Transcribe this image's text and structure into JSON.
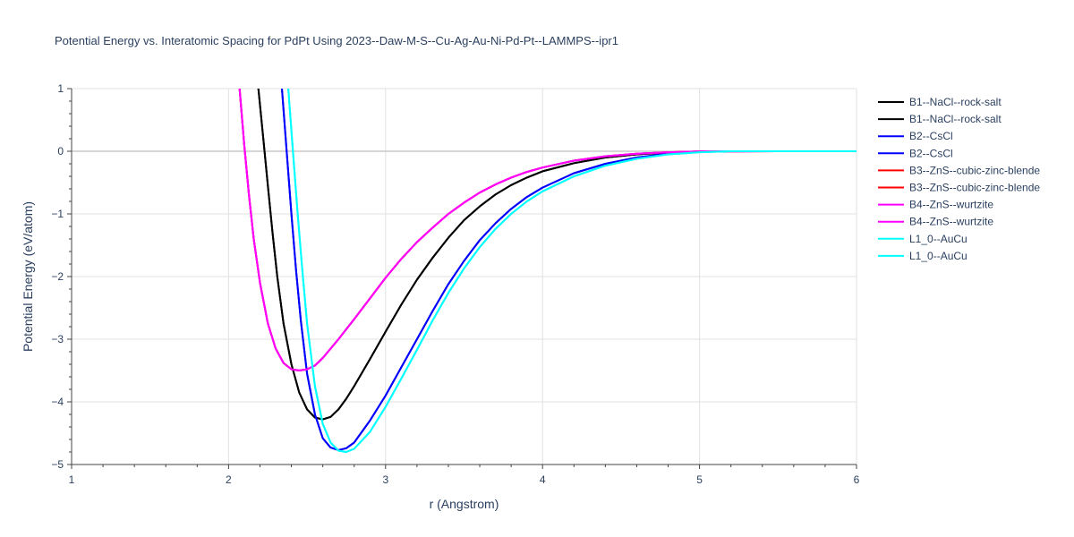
{
  "chart_data": {
    "type": "line",
    "title": "Potential Energy vs. Interatomic Spacing for PdPt Using 2023--Daw-M-S--Cu-Ag-Au-Ni-Pd-Pt--LAMMPS--ipr1",
    "xlabel": "r (Angstrom)",
    "ylabel": "Potential Energy (eV/atom)",
    "xlim": [
      1,
      6
    ],
    "ylim": [
      -5,
      1
    ],
    "x_ticks": [
      1,
      2,
      3,
      4,
      5,
      6
    ],
    "y_ticks": [
      1,
      0,
      -1,
      -2,
      -3,
      -4,
      -5
    ],
    "x_tick_labels": [
      "1",
      "2",
      "3",
      "4",
      "5",
      "6"
    ],
    "y_tick_labels": [
      "1",
      "0",
      "−1",
      "−2",
      "−3",
      "−4",
      "−5"
    ],
    "grid": true,
    "legend_position": "right",
    "series": [
      {
        "name": "B1--NaCl--rock-salt",
        "color": "#000000",
        "x": [
          2.19,
          2.22,
          2.25,
          2.28,
          2.31,
          2.35,
          2.4,
          2.45,
          2.5,
          2.55,
          2.6,
          2.65,
          2.7,
          2.75,
          2.8,
          2.9,
          3.0,
          3.1,
          3.2,
          3.3,
          3.4,
          3.5,
          3.6,
          3.7,
          3.8,
          3.9,
          4.0,
          4.2,
          4.4,
          4.6,
          4.8,
          5.0,
          5.2,
          5.5,
          6.0
        ],
        "y": [
          1.0,
          0.23,
          -0.55,
          -1.3,
          -2.0,
          -2.75,
          -3.4,
          -3.85,
          -4.12,
          -4.25,
          -4.28,
          -4.24,
          -4.12,
          -3.95,
          -3.75,
          -3.32,
          -2.88,
          -2.45,
          -2.05,
          -1.7,
          -1.38,
          -1.1,
          -0.88,
          -0.69,
          -0.54,
          -0.42,
          -0.32,
          -0.19,
          -0.1,
          -0.05,
          -0.02,
          -0.005,
          0.0,
          0.0,
          0.0
        ]
      },
      {
        "name": "B1--NaCl--rock-salt",
        "color": "#000000",
        "x": [
          2.19,
          2.22,
          2.25,
          2.28,
          2.31,
          2.35,
          2.4,
          2.45,
          2.5,
          2.55,
          2.6,
          2.65,
          2.7,
          2.75,
          2.8,
          2.9,
          3.0,
          3.1,
          3.2,
          3.3,
          3.4,
          3.5,
          3.6,
          3.7,
          3.8,
          3.9,
          4.0,
          4.2,
          4.4,
          4.6,
          4.8,
          5.0,
          5.2,
          5.5,
          6.0
        ],
        "y": [
          1.0,
          0.23,
          -0.55,
          -1.3,
          -2.0,
          -2.75,
          -3.4,
          -3.85,
          -4.12,
          -4.25,
          -4.28,
          -4.24,
          -4.12,
          -3.95,
          -3.75,
          -3.32,
          -2.88,
          -2.45,
          -2.05,
          -1.7,
          -1.38,
          -1.1,
          -0.88,
          -0.69,
          -0.54,
          -0.42,
          -0.32,
          -0.19,
          -0.1,
          -0.05,
          -0.02,
          -0.005,
          0.0,
          0.0,
          0.0
        ]
      },
      {
        "name": "B2--CsCl",
        "color": "#0000ff",
        "x": [
          2.34,
          2.37,
          2.4,
          2.43,
          2.46,
          2.5,
          2.55,
          2.6,
          2.65,
          2.7,
          2.75,
          2.8,
          2.9,
          3.0,
          3.1,
          3.2,
          3.3,
          3.4,
          3.5,
          3.6,
          3.7,
          3.8,
          3.9,
          4.0,
          4.2,
          4.4,
          4.6,
          4.8,
          5.0,
          5.2,
          5.5,
          6.0
        ],
        "y": [
          1.0,
          0.0,
          -1.0,
          -1.9,
          -2.7,
          -3.55,
          -4.2,
          -4.58,
          -4.73,
          -4.77,
          -4.74,
          -4.65,
          -4.3,
          -3.9,
          -3.45,
          -3.0,
          -2.55,
          -2.12,
          -1.75,
          -1.42,
          -1.15,
          -0.92,
          -0.73,
          -0.58,
          -0.35,
          -0.2,
          -0.1,
          -0.04,
          -0.01,
          0.0,
          0.0,
          0.0
        ]
      },
      {
        "name": "B2--CsCl",
        "color": "#0000ff",
        "x": [
          2.34,
          2.37,
          2.4,
          2.43,
          2.46,
          2.5,
          2.55,
          2.6,
          2.65,
          2.7,
          2.75,
          2.8,
          2.9,
          3.0,
          3.1,
          3.2,
          3.3,
          3.4,
          3.5,
          3.6,
          3.7,
          3.8,
          3.9,
          4.0,
          4.2,
          4.4,
          4.6,
          4.8,
          5.0,
          5.2,
          5.5,
          6.0
        ],
        "y": [
          1.0,
          0.0,
          -1.0,
          -1.9,
          -2.7,
          -3.55,
          -4.2,
          -4.58,
          -4.73,
          -4.77,
          -4.74,
          -4.65,
          -4.3,
          -3.9,
          -3.45,
          -3.0,
          -2.55,
          -2.12,
          -1.75,
          -1.42,
          -1.15,
          -0.92,
          -0.73,
          -0.58,
          -0.35,
          -0.2,
          -0.1,
          -0.04,
          -0.01,
          0.0,
          0.0,
          0.0
        ]
      },
      {
        "name": "B3--ZnS--cubic-zinc-blende",
        "color": "#ff0000",
        "x": [
          2.07,
          2.1,
          2.13,
          2.16,
          2.2,
          2.25,
          2.3,
          2.35,
          2.4,
          2.45,
          2.5,
          2.55,
          2.6,
          2.7,
          2.8,
          2.9,
          3.0,
          3.1,
          3.2,
          3.3,
          3.4,
          3.5,
          3.6,
          3.7,
          3.8,
          3.9,
          4.0,
          4.2,
          4.4,
          4.6,
          4.8,
          5.0,
          5.5,
          6.0
        ],
        "y": [
          1.0,
          0.1,
          -0.7,
          -1.4,
          -2.1,
          -2.75,
          -3.15,
          -3.38,
          -3.48,
          -3.5,
          -3.48,
          -3.42,
          -3.3,
          -3.0,
          -2.68,
          -2.35,
          -2.02,
          -1.72,
          -1.45,
          -1.22,
          -1.0,
          -0.82,
          -0.66,
          -0.53,
          -0.42,
          -0.33,
          -0.26,
          -0.15,
          -0.08,
          -0.04,
          -0.015,
          -0.005,
          0.0,
          0.0
        ]
      },
      {
        "name": "B3--ZnS--cubic-zinc-blende",
        "color": "#ff0000",
        "x": [
          2.07,
          2.1,
          2.13,
          2.16,
          2.2,
          2.25,
          2.3,
          2.35,
          2.4,
          2.45,
          2.5,
          2.55,
          2.6,
          2.7,
          2.8,
          2.9,
          3.0,
          3.1,
          3.2,
          3.3,
          3.4,
          3.5,
          3.6,
          3.7,
          3.8,
          3.9,
          4.0,
          4.2,
          4.4,
          4.6,
          4.8,
          5.0,
          5.5,
          6.0
        ],
        "y": [
          1.0,
          0.1,
          -0.7,
          -1.4,
          -2.1,
          -2.75,
          -3.15,
          -3.38,
          -3.48,
          -3.5,
          -3.48,
          -3.42,
          -3.3,
          -3.0,
          -2.68,
          -2.35,
          -2.02,
          -1.72,
          -1.45,
          -1.22,
          -1.0,
          -0.82,
          -0.66,
          -0.53,
          -0.42,
          -0.33,
          -0.26,
          -0.15,
          -0.08,
          -0.04,
          -0.015,
          -0.005,
          0.0,
          0.0
        ]
      },
      {
        "name": "B4--ZnS--wurtzite",
        "color": "#ff00ff",
        "x": [
          2.07,
          2.1,
          2.13,
          2.16,
          2.2,
          2.25,
          2.3,
          2.35,
          2.4,
          2.45,
          2.5,
          2.55,
          2.6,
          2.7,
          2.8,
          2.9,
          3.0,
          3.1,
          3.2,
          3.3,
          3.4,
          3.5,
          3.6,
          3.7,
          3.8,
          3.9,
          4.0,
          4.2,
          4.4,
          4.6,
          4.8,
          5.0,
          5.5,
          6.0
        ],
        "y": [
          1.0,
          0.1,
          -0.7,
          -1.4,
          -2.1,
          -2.75,
          -3.15,
          -3.38,
          -3.48,
          -3.5,
          -3.48,
          -3.42,
          -3.3,
          -3.0,
          -2.68,
          -2.35,
          -2.02,
          -1.72,
          -1.45,
          -1.22,
          -1.0,
          -0.82,
          -0.66,
          -0.53,
          -0.42,
          -0.33,
          -0.26,
          -0.15,
          -0.08,
          -0.04,
          -0.015,
          -0.005,
          0.0,
          0.0
        ]
      },
      {
        "name": "B4--ZnS--wurtzite",
        "color": "#ff00ff",
        "x": [
          2.07,
          2.1,
          2.13,
          2.16,
          2.2,
          2.25,
          2.3,
          2.35,
          2.4,
          2.45,
          2.5,
          2.55,
          2.6,
          2.7,
          2.8,
          2.9,
          3.0,
          3.1,
          3.2,
          3.3,
          3.4,
          3.5,
          3.6,
          3.7,
          3.8,
          3.9,
          4.0,
          4.2,
          4.4,
          4.6,
          4.8,
          5.0,
          5.5,
          6.0
        ],
        "y": [
          1.0,
          0.1,
          -0.7,
          -1.4,
          -2.1,
          -2.75,
          -3.15,
          -3.38,
          -3.48,
          -3.5,
          -3.48,
          -3.42,
          -3.3,
          -3.0,
          -2.68,
          -2.35,
          -2.02,
          -1.72,
          -1.45,
          -1.22,
          -1.0,
          -0.82,
          -0.66,
          -0.53,
          -0.42,
          -0.33,
          -0.26,
          -0.15,
          -0.08,
          -0.04,
          -0.015,
          -0.005,
          0.0,
          0.0
        ]
      },
      {
        "name": "L1_0--AuCu",
        "color": "#00ffff",
        "x": [
          2.38,
          2.41,
          2.44,
          2.47,
          2.5,
          2.55,
          2.6,
          2.65,
          2.7,
          2.75,
          2.8,
          2.9,
          3.0,
          3.1,
          3.2,
          3.3,
          3.4,
          3.5,
          3.6,
          3.7,
          3.8,
          3.9,
          4.0,
          4.2,
          4.4,
          4.6,
          4.8,
          5.0,
          5.2,
          5.5,
          6.0
        ],
        "y": [
          1.0,
          0.0,
          -1.0,
          -1.9,
          -2.75,
          -3.75,
          -4.35,
          -4.65,
          -4.78,
          -4.8,
          -4.75,
          -4.48,
          -4.08,
          -3.63,
          -3.17,
          -2.7,
          -2.26,
          -1.87,
          -1.53,
          -1.24,
          -1.0,
          -0.8,
          -0.64,
          -0.4,
          -0.23,
          -0.12,
          -0.05,
          -0.015,
          0.0,
          0.0,
          0.0
        ]
      },
      {
        "name": "L1_0--AuCu",
        "color": "#00ffff",
        "x": [
          2.38,
          2.41,
          2.44,
          2.47,
          2.5,
          2.55,
          2.6,
          2.65,
          2.7,
          2.75,
          2.8,
          2.9,
          3.0,
          3.1,
          3.2,
          3.3,
          3.4,
          3.5,
          3.6,
          3.7,
          3.8,
          3.9,
          4.0,
          4.2,
          4.4,
          4.6,
          4.8,
          5.0,
          5.2,
          5.5,
          6.0
        ],
        "y": [
          1.0,
          0.0,
          -1.0,
          -1.9,
          -2.75,
          -3.75,
          -4.35,
          -4.65,
          -4.78,
          -4.8,
          -4.75,
          -4.48,
          -4.08,
          -3.63,
          -3.17,
          -2.7,
          -2.26,
          -1.87,
          -1.53,
          -1.24,
          -1.0,
          -0.8,
          -0.64,
          -0.4,
          -0.23,
          -0.12,
          -0.05,
          -0.015,
          0.0,
          0.0,
          0.0
        ]
      }
    ]
  }
}
